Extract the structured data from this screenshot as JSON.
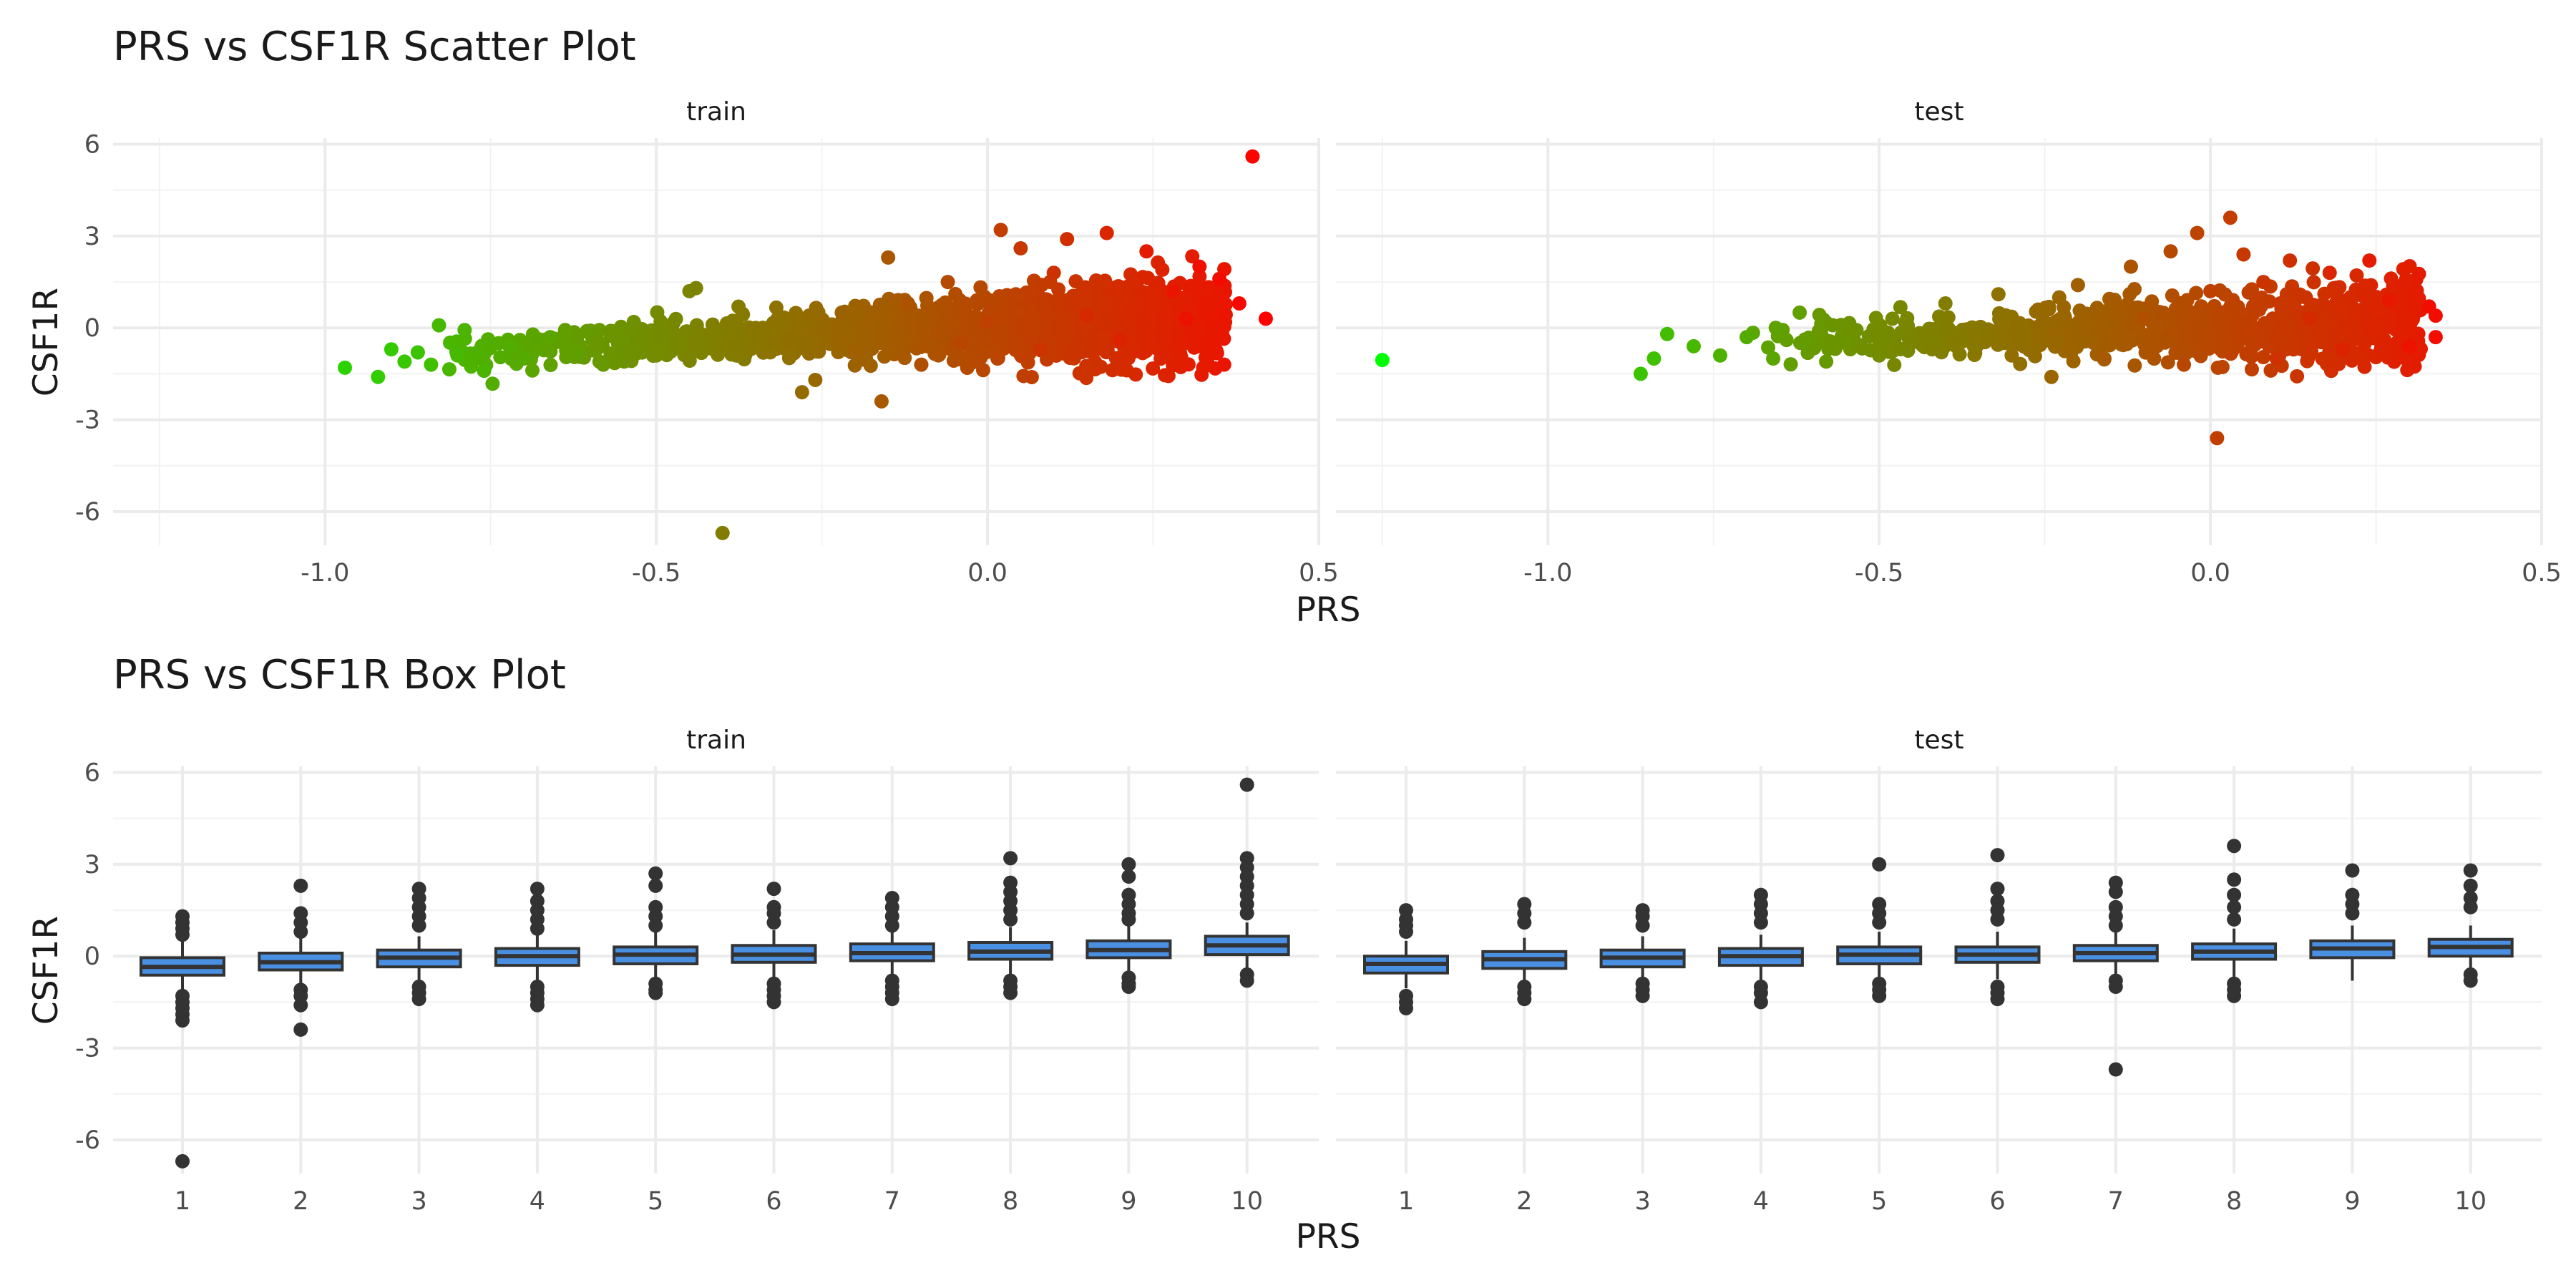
{
  "chart_data": [
    {
      "type": "scatter",
      "title": "PRS vs CSF1R Scatter Plot",
      "xlabel": "PRS",
      "ylabel": "CSF1R",
      "xlim": [
        -1.32,
        0.5
      ],
      "ylim": [
        -7.1,
        6.2
      ],
      "x_ticks": [
        -1.0,
        -0.5,
        0.0,
        0.5
      ],
      "x_tick_labels": [
        "-1.0",
        "-0.5",
        "0.0",
        "0.5"
      ],
      "y_ticks": [
        -6,
        -3,
        0,
        3,
        6
      ],
      "y_tick_labels": [
        "-6",
        "-3",
        "0",
        "3",
        "6"
      ],
      "grid": true,
      "color_scale": {
        "low": "#00ff00",
        "high": "#ff0000",
        "mapped_to": "PRS"
      },
      "panels": [
        {
          "name": "train",
          "points": [
            [
              -0.97,
              -1.3
            ],
            [
              -0.92,
              -1.6
            ],
            [
              -0.9,
              -0.7
            ],
            [
              -0.88,
              -1.1
            ],
            [
              -0.86,
              -0.8
            ],
            [
              -0.84,
              -1.2
            ],
            [
              -0.8,
              -0.9
            ],
            [
              -0.76,
              -1.4
            ],
            [
              -0.72,
              -0.6
            ],
            [
              -0.7,
              -1.0
            ],
            [
              -0.66,
              -0.3
            ],
            [
              -0.62,
              -0.8
            ],
            [
              -0.58,
              -1.2
            ],
            [
              -0.55,
              -0.4
            ],
            [
              -0.5,
              -0.9
            ],
            [
              -0.45,
              1.2
            ],
            [
              -0.44,
              1.3
            ],
            [
              -0.42,
              -0.2
            ],
            [
              -0.4,
              -6.7
            ],
            [
              -0.38,
              -0.6
            ],
            [
              -0.35,
              0.0
            ],
            [
              -0.3,
              -0.4
            ],
            [
              -0.28,
              -2.1
            ],
            [
              -0.26,
              -1.7
            ],
            [
              -0.22,
              0.5
            ],
            [
              -0.2,
              -0.8
            ],
            [
              -0.16,
              -2.4
            ],
            [
              -0.15,
              2.3
            ],
            [
              -0.12,
              0.8
            ],
            [
              -0.1,
              -1.2
            ],
            [
              -0.06,
              1.5
            ],
            [
              -0.04,
              -0.5
            ],
            [
              0.0,
              0.2
            ],
            [
              0.02,
              3.2
            ],
            [
              0.05,
              2.6
            ],
            [
              0.08,
              -0.7
            ],
            [
              0.1,
              1.8
            ],
            [
              0.12,
              2.9
            ],
            [
              0.15,
              0.4
            ],
            [
              0.18,
              3.1
            ],
            [
              0.2,
              -0.4
            ],
            [
              0.24,
              2.5
            ],
            [
              0.28,
              1.2
            ],
            [
              0.3,
              0.3
            ],
            [
              0.32,
              2.0
            ],
            [
              0.35,
              1.6
            ],
            [
              0.38,
              0.8
            ],
            [
              0.4,
              5.6
            ],
            [
              0.42,
              0.3
            ]
          ]
        },
        {
          "name": "test",
          "points": [
            [
              -1.25,
              -1.05
            ],
            [
              -0.86,
              -1.5
            ],
            [
              -0.84,
              -1.0
            ],
            [
              -0.82,
              -0.2
            ],
            [
              -0.78,
              -0.6
            ],
            [
              -0.74,
              -0.9
            ],
            [
              -0.7,
              -0.3
            ],
            [
              -0.66,
              -1.0
            ],
            [
              -0.62,
              0.5
            ],
            [
              -0.58,
              -1.1
            ],
            [
              -0.55,
              -0.5
            ],
            [
              -0.5,
              -0.9
            ],
            [
              -0.48,
              0.3
            ],
            [
              -0.42,
              -0.7
            ],
            [
              -0.4,
              0.8
            ],
            [
              -0.36,
              -0.2
            ],
            [
              -0.32,
              1.1
            ],
            [
              -0.3,
              -0.9
            ],
            [
              -0.26,
              0.6
            ],
            [
              -0.24,
              -1.6
            ],
            [
              -0.2,
              1.4
            ],
            [
              -0.16,
              -1.0
            ],
            [
              -0.12,
              2.0
            ],
            [
              -0.1,
              0.3
            ],
            [
              -0.06,
              2.5
            ],
            [
              -0.04,
              -1.2
            ],
            [
              -0.02,
              3.1
            ],
            [
              0.0,
              1.2
            ],
            [
              0.01,
              -3.6
            ],
            [
              0.03,
              3.6
            ],
            [
              0.05,
              2.4
            ],
            [
              0.08,
              1.5
            ],
            [
              0.1,
              -1.0
            ],
            [
              0.12,
              2.2
            ],
            [
              0.15,
              0.3
            ],
            [
              0.18,
              1.8
            ],
            [
              0.2,
              -0.7
            ],
            [
              0.24,
              2.2
            ],
            [
              0.27,
              0.9
            ],
            [
              0.3,
              -0.6
            ],
            [
              0.33,
              0.7
            ],
            [
              0.34,
              0.4
            ],
            [
              0.34,
              -0.3
            ]
          ]
        }
      ]
    },
    {
      "type": "box",
      "title": "PRS vs CSF1R Box Plot",
      "xlabel": "PRS",
      "ylabel": "CSF1R",
      "ylim": [
        -7.1,
        6.2
      ],
      "categories": [
        "1",
        "2",
        "3",
        "4",
        "5",
        "6",
        "7",
        "8",
        "9",
        "10"
      ],
      "y_ticks": [
        -6,
        -3,
        0,
        3,
        6
      ],
      "y_tick_labels": [
        "-6",
        "-3",
        "0",
        "3",
        "6"
      ],
      "grid": true,
      "box_color": "#4a90e2",
      "panels": [
        {
          "name": "train",
          "boxes": [
            {
              "q1": -0.62,
              "median": -0.35,
              "q3": -0.05,
              "wlo": -1.1,
              "whi": 0.55,
              "outliers": [
                1.3,
                1.1,
                0.9,
                0.7,
                -1.3,
                -1.5,
                -1.7,
                -1.9,
                -2.1,
                -6.7
              ]
            },
            {
              "q1": -0.45,
              "median": -0.2,
              "q3": 0.1,
              "wlo": -0.95,
              "whi": 0.6,
              "outliers": [
                2.3,
                1.4,
                1.1,
                0.8,
                -1.1,
                -1.3,
                -1.6,
                -2.4
              ]
            },
            {
              "q1": -0.35,
              "median": -0.05,
              "q3": 0.2,
              "wlo": -0.9,
              "whi": 0.65,
              "outliers": [
                2.2,
                1.9,
                1.6,
                1.3,
                1.0,
                -1.0,
                -1.2,
                -1.4
              ]
            },
            {
              "q1": -0.3,
              "median": 0.0,
              "q3": 0.25,
              "wlo": -0.85,
              "whi": 0.7,
              "outliers": [
                2.2,
                1.8,
                1.5,
                1.2,
                0.9,
                -1.0,
                -1.2,
                -1.4,
                -1.6
              ]
            },
            {
              "q1": -0.25,
              "median": 0.05,
              "q3": 0.3,
              "wlo": -0.75,
              "whi": 0.8,
              "outliers": [
                2.7,
                2.3,
                1.6,
                1.3,
                1.0,
                -0.9,
                -1.1,
                -1.2
              ]
            },
            {
              "q1": -0.2,
              "median": 0.05,
              "q3": 0.35,
              "wlo": -0.75,
              "whi": 0.85,
              "outliers": [
                2.2,
                1.6,
                1.4,
                1.1,
                -0.9,
                -1.1,
                -1.3,
                -1.5
              ]
            },
            {
              "q1": -0.15,
              "median": 0.1,
              "q3": 0.4,
              "wlo": -0.7,
              "whi": 0.9,
              "outliers": [
                1.9,
                1.6,
                1.3,
                1.0,
                -0.8,
                -1.0,
                -1.2,
                -1.4
              ]
            },
            {
              "q1": -0.1,
              "median": 0.15,
              "q3": 0.45,
              "wlo": -0.65,
              "whi": 0.95,
              "outliers": [
                3.2,
                2.4,
                2.1,
                1.8,
                1.5,
                1.2,
                -0.8,
                -1.0,
                -1.2
              ]
            },
            {
              "q1": -0.05,
              "median": 0.2,
              "q3": 0.5,
              "wlo": -0.6,
              "whi": 1.0,
              "outliers": [
                3.0,
                2.6,
                2.0,
                1.7,
                1.4,
                1.2,
                -0.7,
                -0.9,
                -1.0
              ]
            },
            {
              "q1": 0.05,
              "median": 0.35,
              "q3": 0.65,
              "wlo": -0.45,
              "whi": 1.1,
              "outliers": [
                5.6,
                3.2,
                2.9,
                2.6,
                2.3,
                2.0,
                1.7,
                1.4,
                -0.6,
                -0.8
              ]
            }
          ]
        },
        {
          "name": "test",
          "boxes": [
            {
              "q1": -0.55,
              "median": -0.25,
              "q3": 0.0,
              "wlo": -1.05,
              "whi": 0.5,
              "outliers": [
                1.5,
                1.2,
                1.0,
                0.8,
                -1.3,
                -1.5,
                -1.7
              ]
            },
            {
              "q1": -0.4,
              "median": -0.1,
              "q3": 0.15,
              "wlo": -0.9,
              "whi": 0.6,
              "outliers": [
                1.7,
                1.4,
                1.1,
                -1.0,
                -1.2,
                -1.4
              ]
            },
            {
              "q1": -0.35,
              "median": -0.05,
              "q3": 0.2,
              "wlo": -0.85,
              "whi": 0.65,
              "outliers": [
                1.5,
                1.3,
                1.0,
                -0.9,
                -1.1,
                -1.3
              ]
            },
            {
              "q1": -0.3,
              "median": 0.0,
              "q3": 0.25,
              "wlo": -0.8,
              "whi": 0.7,
              "outliers": [
                2.0,
                1.7,
                1.4,
                1.1,
                -1.0,
                -1.2,
                -1.5
              ]
            },
            {
              "q1": -0.25,
              "median": 0.05,
              "q3": 0.3,
              "wlo": -0.75,
              "whi": 0.8,
              "outliers": [
                3.0,
                1.7,
                1.4,
                1.1,
                -0.9,
                -1.1,
                -1.3
              ]
            },
            {
              "q1": -0.2,
              "median": 0.05,
              "q3": 0.3,
              "wlo": -0.75,
              "whi": 0.8,
              "outliers": [
                3.3,
                2.2,
                1.8,
                1.5,
                1.2,
                -1.0,
                -1.2,
                -1.4
              ]
            },
            {
              "q1": -0.15,
              "median": 0.1,
              "q3": 0.35,
              "wlo": -0.7,
              "whi": 0.85,
              "outliers": [
                2.4,
                2.1,
                1.6,
                1.3,
                1.0,
                -0.8,
                -1.0,
                -3.7
              ]
            },
            {
              "q1": -0.1,
              "median": 0.15,
              "q3": 0.4,
              "wlo": -0.7,
              "whi": 0.9,
              "outliers": [
                3.6,
                2.5,
                2.0,
                1.6,
                1.2,
                -0.9,
                -1.1,
                -1.3
              ]
            },
            {
              "q1": -0.05,
              "median": 0.25,
              "q3": 0.5,
              "wlo": -0.8,
              "whi": 1.0,
              "outliers": [
                2.8,
                2.0,
                1.7,
                1.4
              ]
            },
            {
              "q1": 0.0,
              "median": 0.3,
              "q3": 0.55,
              "wlo": -0.5,
              "whi": 1.0,
              "outliers": [
                2.8,
                2.3,
                1.9,
                1.6,
                -0.6,
                -0.8
              ]
            }
          ]
        }
      ]
    }
  ]
}
